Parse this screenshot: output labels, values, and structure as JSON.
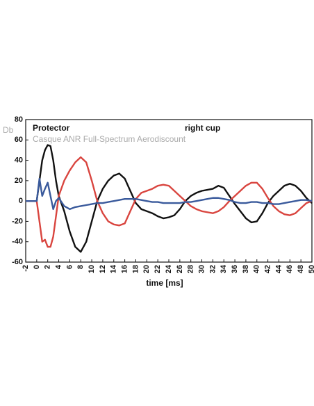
{
  "chart_data": {
    "type": "line",
    "y_label": "Db",
    "x_label": "time [ms]",
    "annotations": [
      "Protector",
      "right cup"
    ],
    "subtitle": "Casque ANR Full-Spectrum Aerodiscount",
    "x": [
      -2,
      -1,
      0,
      0.5,
      1,
      1.5,
      2,
      2.5,
      3,
      3.5,
      4,
      5,
      6,
      7,
      8,
      9,
      10,
      11,
      12,
      13,
      14,
      15,
      16,
      17,
      18,
      19,
      20,
      21,
      22,
      23,
      24,
      25,
      26,
      27,
      28,
      29,
      30,
      31,
      32,
      33,
      34,
      35,
      36,
      37,
      38,
      39,
      40,
      41,
      42,
      43,
      44,
      45,
      46,
      47,
      48,
      49,
      50
    ],
    "series": [
      {
        "color": "#111111",
        "values": [
          0,
          0,
          0,
          20,
          40,
          50,
          55,
          54,
          40,
          20,
          5,
          -10,
          -30,
          -45,
          -50,
          -40,
          -20,
          0,
          12,
          20,
          25,
          27,
          22,
          10,
          -2,
          -8,
          -10,
          -12,
          -15,
          -17,
          -16,
          -14,
          -8,
          0,
          5,
          8,
          10,
          11,
          12,
          15,
          13,
          5,
          -3,
          -10,
          -17,
          -21,
          -20,
          -12,
          -2,
          5,
          10,
          15,
          17,
          15,
          10,
          3,
          -2
        ]
      },
      {
        "color": "#d9453f",
        "values": [
          0,
          0,
          0,
          -20,
          -40,
          -38,
          -45,
          -45,
          -35,
          -15,
          5,
          20,
          30,
          38,
          43,
          38,
          20,
          0,
          -12,
          -20,
          -23,
          -24,
          -22,
          -10,
          2,
          8,
          10,
          12,
          15,
          16,
          15,
          10,
          5,
          0,
          -5,
          -8,
          -10,
          -11,
          -12,
          -10,
          -6,
          0,
          5,
          10,
          15,
          18,
          18,
          12,
          3,
          -5,
          -10,
          -13,
          -14,
          -12,
          -7,
          -2,
          0
        ]
      },
      {
        "color": "#3a5a9c",
        "values": [
          0,
          0,
          0,
          22,
          5,
          12,
          18,
          5,
          -8,
          0,
          3,
          -5,
          -8,
          -6,
          -5,
          -4,
          -3,
          -2,
          -2,
          -1,
          0,
          1,
          2,
          2,
          2,
          1,
          0,
          -1,
          -1,
          -2,
          -2,
          -2,
          -2,
          -1,
          -1,
          0,
          1,
          2,
          3,
          3,
          2,
          1,
          -1,
          -2,
          -2,
          -1,
          -1,
          -2,
          -2,
          -3,
          -3,
          -2,
          -1,
          0,
          1,
          1,
          0
        ]
      }
    ],
    "xlim": [
      -2,
      50
    ],
    "ylim": [
      -60,
      80
    ],
    "xticks": [
      -2,
      0,
      2,
      4,
      6,
      8,
      10,
      12,
      14,
      16,
      18,
      20,
      22,
      24,
      26,
      28,
      30,
      32,
      34,
      36,
      38,
      40,
      42,
      44,
      46,
      48,
      50
    ],
    "yticks": [
      -60,
      -40,
      -20,
      0,
      20,
      40,
      60,
      80
    ],
    "grid": false
  }
}
